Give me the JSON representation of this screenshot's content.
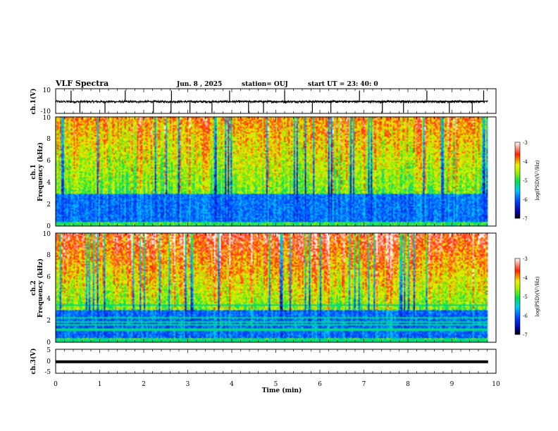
{
  "header": {
    "title": "VLF Spectra",
    "date": "Jun. 8 , 2025",
    "station": "station= OUJ",
    "start": "start UT = 23: 40: 0"
  },
  "chart_data": [
    {
      "type": "line",
      "name": "ch1-waveform",
      "ylabel": "ch.1(V)",
      "ylim": [
        -10,
        10
      ],
      "yticks": [
        "10",
        "-10"
      ],
      "xlim": [
        0,
        10
      ],
      "spikes_min": [
        0.35,
        0.55,
        1.12,
        1.58,
        2.22,
        2.62,
        2.63,
        3.05,
        3.55,
        3.95,
        4.38,
        4.72,
        5.2,
        5.83,
        6.25,
        6.9,
        7.42,
        7.9,
        8.43,
        8.94,
        9.46,
        9.72
      ]
    },
    {
      "type": "heatmap",
      "name": "ch1-spectrogram",
      "ylabel": "ch.1\nFrequency (kHz)",
      "ylim": [
        0,
        10
      ],
      "yticks": [
        "0",
        "2",
        "4",
        "6",
        "8",
        "10"
      ],
      "xlim": [
        0,
        10
      ],
      "colorbar": {
        "label": "log(PSD)(V²/Hz)",
        "range": [
          -7,
          -3
        ],
        "ticks": [
          "-3",
          "-4",
          "-5",
          "-6",
          "-7"
        ]
      }
    },
    {
      "type": "heatmap",
      "name": "ch2-spectrogram",
      "ylabel": "ch.2\nFrequency (kHz)",
      "ylim": [
        0,
        10
      ],
      "yticks": [
        "0",
        "2",
        "4",
        "6",
        "8",
        "10"
      ],
      "xlim": [
        0,
        10
      ],
      "colorbar": {
        "label": "log(PSD)(V²/Hz)",
        "range": [
          -7,
          -3
        ],
        "ticks": [
          "-3",
          "-4",
          "-5",
          "-6",
          "-7"
        ]
      }
    },
    {
      "type": "line",
      "name": "ch3-waveform",
      "ylabel": "ch.3(V)",
      "ylim": [
        -5,
        5
      ],
      "yticks": [
        "5",
        "0",
        "-5"
      ],
      "xlim": [
        0,
        10
      ],
      "level": -0.2
    }
  ],
  "xaxis": {
    "label": "Time (min)",
    "ticks": [
      "0",
      "1",
      "2",
      "3",
      "4",
      "5",
      "6",
      "7",
      "8",
      "9",
      "10"
    ]
  }
}
